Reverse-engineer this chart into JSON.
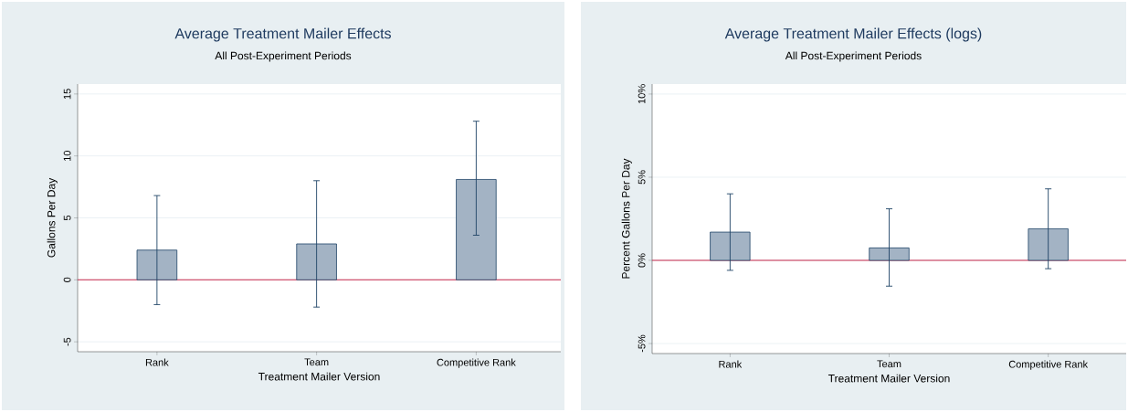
{
  "chart_data": [
    {
      "type": "bar",
      "title": "Average Treatment Mailer Effects",
      "subtitle": "All Post-Experiment Periods",
      "xlabel": "Treatment Mailer Version",
      "ylabel": "Gallons Per Day",
      "categories": [
        "Rank",
        "Team",
        "Competitive Rank"
      ],
      "values": [
        2.4,
        2.9,
        8.1
      ],
      "errors": [
        [
          -2.0,
          6.8
        ],
        [
          -2.2,
          8.0
        ],
        [
          3.6,
          12.8
        ]
      ],
      "color": "#a3b3c4",
      "ylim": [
        -5.8,
        15.8
      ],
      "yticks": [
        -5,
        0,
        5,
        10,
        15
      ],
      "grid": "y",
      "ref_lines": [
        {
          "axis": "y",
          "value": 0,
          "color": "#c8284c"
        }
      ]
    },
    {
      "type": "bar",
      "title": "Average Treatment Mailer Effects (logs)",
      "subtitle": "All Post-Experiment Periods",
      "xlabel": "Treatment Mailer Version",
      "ylabel": "Percent Gallons Per Day",
      "categories": [
        "Rank",
        "Team",
        "Competitive Rank"
      ],
      "values": [
        1.7,
        0.75,
        1.9
      ],
      "errors": [
        [
          -0.6,
          4.0
        ],
        [
          -1.55,
          3.1
        ],
        [
          -0.5,
          4.3
        ]
      ],
      "color": "#a3b3c4",
      "ylim": [
        -5.6,
        10.6
      ],
      "yticks": [
        {
          "value": -5,
          "label": "-5%"
        },
        {
          "value": 0,
          "label": "0%"
        },
        {
          "value": 5,
          "label": "5%"
        },
        {
          "value": 10,
          "label": "10%"
        }
      ],
      "grid": "y",
      "ref_lines": [
        {
          "axis": "y",
          "value": 0,
          "color": "#c8284c"
        }
      ]
    }
  ]
}
